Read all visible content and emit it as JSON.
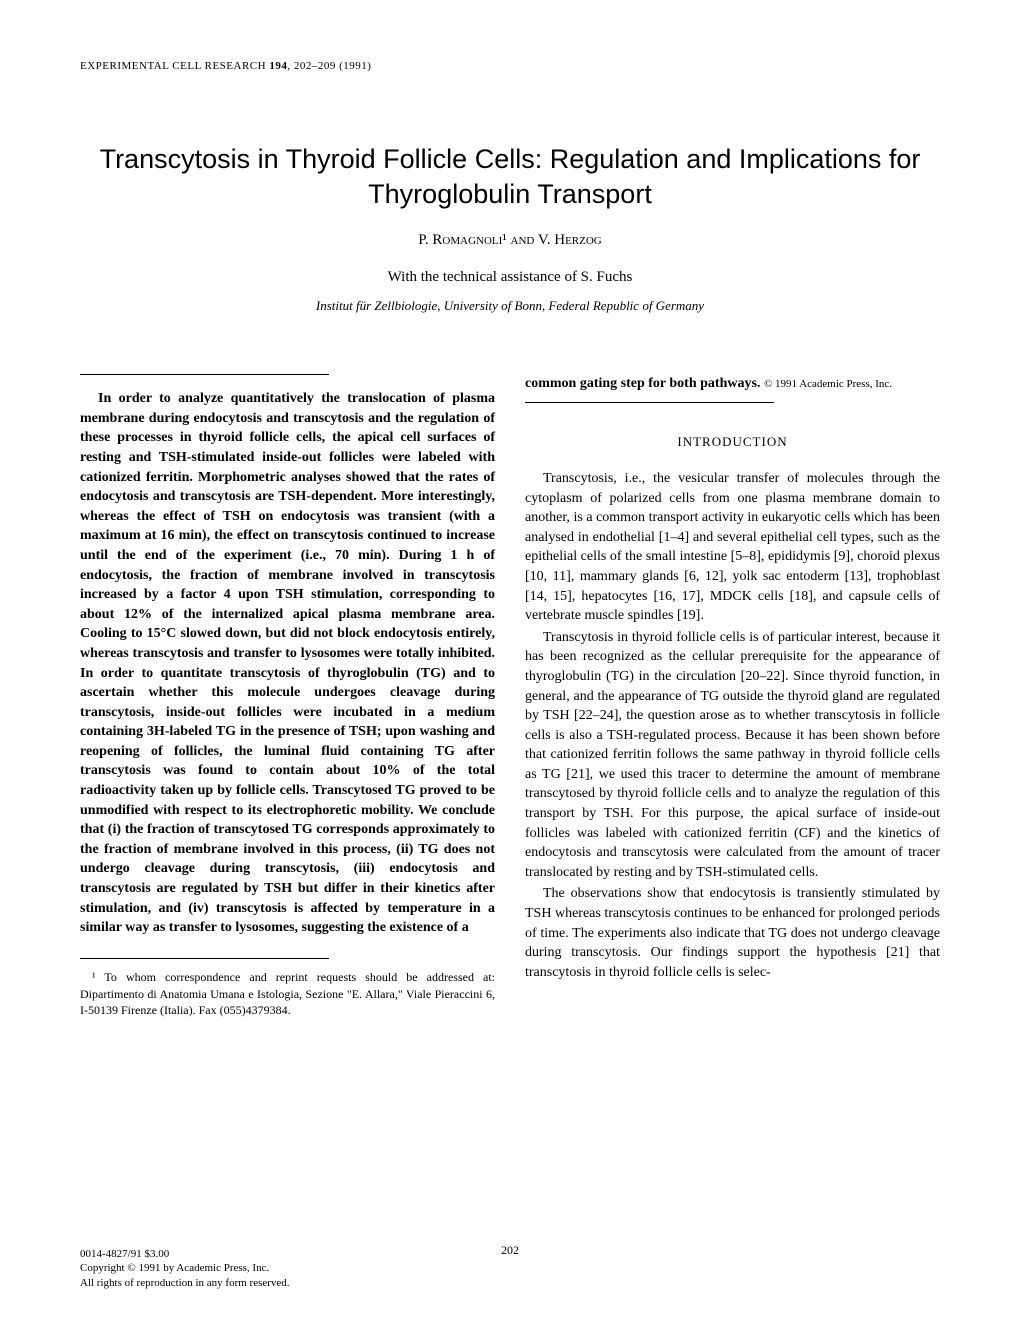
{
  "journal": {
    "name": "EXPERIMENTAL CELL RESEARCH",
    "volume": "194",
    "pages": "202–209",
    "year": "(1991)"
  },
  "title": "Transcytosis in Thyroid Follicle Cells: Regulation and Implications for Thyroglobulin Transport",
  "authors": "P. Romagnoli¹ and V. Herzog",
  "tech_assist": "With the technical assistance of S. Fuchs",
  "affiliation": "Institut für Zellbiologie, University of Bonn, Federal Republic of Germany",
  "abstract": "In order to analyze quantitatively the translocation of plasma membrane during endocytosis and transcytosis and the regulation of these processes in thyroid follicle cells, the apical cell surfaces of resting and TSH-stimulated inside-out follicles were labeled with cationized ferritin. Morphometric analyses showed that the rates of endocytosis and transcytosis are TSH-dependent. More interestingly, whereas the effect of TSH on endocytosis was transient (with a maximum at 16 min), the effect on transcytosis continued to increase until the end of the experiment (i.e., 70 min). During 1 h of endocytosis, the fraction of membrane involved in transcytosis increased by a factor 4 upon TSH stimulation, corresponding to about 12% of the internalized apical plasma membrane area. Cooling to 15°C slowed down, but did not block endocytosis entirely, whereas transcytosis and transfer to lysosomes were totally inhibited. In order to quantitate transcytosis of thyroglobulin (TG) and to ascertain whether this molecule undergoes cleavage during transcytosis, inside-out follicles were incubated in a medium containing 3H-labeled TG in the presence of TSH; upon washing and reopening of follicles, the luminal fluid containing TG after transcytosis was found to contain about 10% of the total radioactivity taken up by follicle cells. Transcytosed TG proved to be unmodified with respect to its electrophoretic mobility. We conclude that (i) the fraction of transcytosed TG corresponds approximately to the fraction of membrane involved in this process, (ii) TG does not undergo cleavage during transcytosis, (iii) endocytosis and transcytosis are regulated by TSH but differ in their kinetics after stimulation, and (iv) transcytosis is affected by temperature in a similar way as transfer to lysosomes, suggesting the existence of a",
  "abstract_continuation": "common gating step for both pathways.",
  "copyright_inline": "© 1991 Academic Press, Inc.",
  "intro_heading": "INTRODUCTION",
  "intro_p1": "Transcytosis, i.e., the vesicular transfer of molecules through the cytoplasm of polarized cells from one plasma membrane domain to another, is a common transport activity in eukaryotic cells which has been analysed in endothelial [1–4] and several epithelial cell types, such as the epithelial cells of the small intestine [5–8], epididymis [9], choroid plexus [10, 11], mammary glands [6, 12], yolk sac entoderm [13], trophoblast [14, 15], hepatocytes [16, 17], MDCK cells [18], and capsule cells of vertebrate muscle spindles [19].",
  "intro_p2": "Transcytosis in thyroid follicle cells is of particular interest, because it has been recognized as the cellular prerequisite for the appearance of thyroglobulin (TG) in the circulation [20–22]. Since thyroid function, in general, and the appearance of TG outside the thyroid gland are regulated by TSH [22–24], the question arose as to whether transcytosis in follicle cells is also a TSH-regulated process. Because it has been shown before that cationized ferritin follows the same pathway in thyroid follicle cells as TG [21], we used this tracer to determine the amount of membrane transcytosed by thyroid follicle cells and to analyze the regulation of this transport by TSH. For this purpose, the apical surface of inside-out follicles was labeled with cationized ferritin (CF) and the kinetics of endocytosis and transcytosis were calculated from the amount of tracer translocated by resting and by TSH-stimulated cells.",
  "intro_p3": "The observations show that endocytosis is transiently stimulated by TSH whereas transcytosis continues to be enhanced for prolonged periods of time. The experiments also indicate that TG does not undergo cleavage during transcytosis. Our findings support the hypothesis [21] that transcytosis in thyroid follicle cells is selec-",
  "footnote": "¹ To whom correspondence and reprint requests should be addressed at: Dipartimento di Anatomia Umana e Istologia, Sezione \"E. Allara,\" Viale Pieraccini 6, I-50139 Firenze (Italia). Fax (055)4379384.",
  "page_number": "202",
  "bottom_copyright": {
    "line1": "0014-4827/91 $3.00",
    "line2": "Copyright © 1991 by Academic Press, Inc.",
    "line3": "All rights of reproduction in any form reserved."
  }
}
